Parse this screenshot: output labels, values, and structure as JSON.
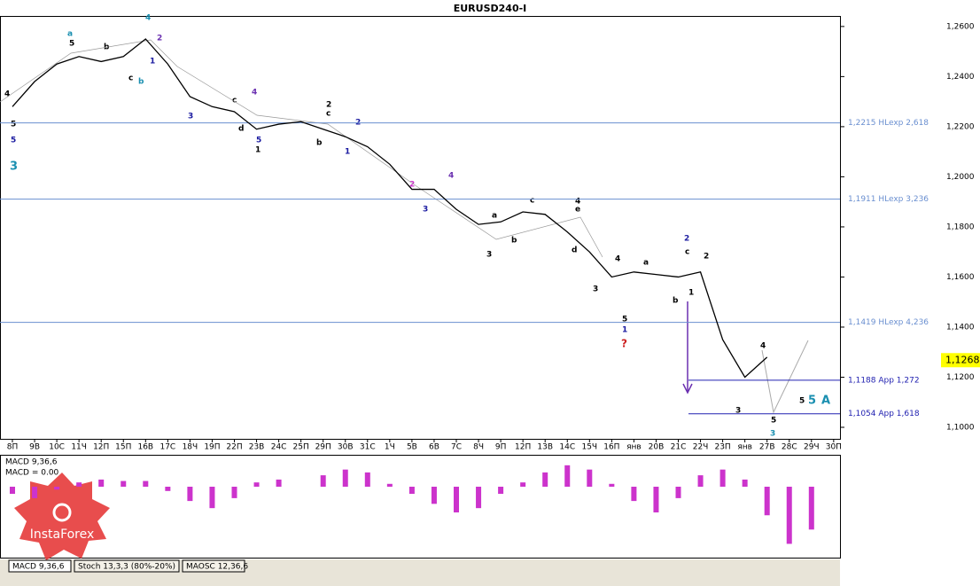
{
  "chart_data": [
    {
      "type": "line",
      "title": "EURUSD240-I",
      "categories": [
        "8П",
        "9В",
        "10С",
        "11Ч",
        "12П",
        "15П",
        "16В",
        "17С",
        "18Ч",
        "19П",
        "22П",
        "23В",
        "24С",
        "25П",
        "29П",
        "30В",
        "31С",
        "1Ч",
        "5В",
        "6В",
        "7С",
        "8Ч",
        "9П",
        "12П",
        "13В",
        "14С",
        "15Ч",
        "16П",
        "янв",
        "20В",
        "21С",
        "22Ч",
        "23П",
        "янв",
        "27В",
        "28С",
        "29Ч",
        "30П"
      ],
      "series": [
        {
          "name": "EURUSD240-I",
          "color": "#000000",
          "values": [
            1.228,
            1.238,
            1.245,
            1.248,
            1.246,
            1.248,
            1.255,
            1.245,
            1.232,
            1.228,
            1.226,
            1.219,
            1.221,
            1.222,
            1.219,
            1.216,
            1.212,
            1.205,
            1.195,
            1.195,
            1.187,
            1.181,
            1.182,
            1.186,
            1.185,
            1.178,
            1.17,
            1.16,
            1.162,
            1.161,
            1.16,
            1.162,
            1.135,
            1.12,
            1.128,
            null,
            null,
            null
          ]
        }
      ],
      "ylim": [
        1.0954,
        1.2642
      ],
      "yticks": [
        {
          "value": 1.26,
          "label": "1,2600"
        },
        {
          "value": 1.24,
          "label": "1,2400"
        },
        {
          "value": 1.22,
          "label": "1,2200"
        },
        {
          "value": 1.2,
          "label": "1,2000"
        },
        {
          "value": 1.18,
          "label": "1,1800"
        },
        {
          "value": 1.16,
          "label": "1,1600"
        },
        {
          "value": 1.14,
          "label": "1,1400"
        },
        {
          "value": 1.12,
          "label": "1,1200"
        },
        {
          "value": 1.1,
          "label": "1,1000"
        }
      ],
      "levels": [
        {
          "value": 1.2215,
          "label": "1,2215 HLexp 2,618",
          "color": "#6a8fd0"
        },
        {
          "value": 1.1911,
          "label": "1,1911 HLexp 3,236",
          "color": "#6a8fd0"
        },
        {
          "value": 1.1419,
          "label": "1,1419 HLexp 4,236",
          "color": "#6a8fd0"
        },
        {
          "value": 1.1188,
          "label": "1,1188 App 1,272",
          "color": "#2020b0"
        },
        {
          "value": 1.1054,
          "label": "1,1054 App 1,618",
          "color": "#2020b0"
        }
      ],
      "last": {
        "value": 1.1268,
        "label": "1,1268"
      },
      "annotations": [
        "5",
        "5",
        "3",
        "4",
        "a",
        "5",
        "b",
        "c",
        "b",
        "4",
        "2",
        "1",
        "3",
        "c",
        "d",
        "4",
        "5",
        "2",
        "2",
        "c",
        "1",
        "b",
        "2",
        "1",
        "3",
        "4",
        "3",
        "a",
        "c",
        "b",
        "4",
        "e",
        "d",
        "3",
        "4",
        "a",
        "5",
        "1",
        "?",
        "2",
        "c",
        "b",
        "2",
        "1",
        "3",
        "4",
        "5",
        "3",
        "5",
        "5",
        "A"
      ]
    },
    {
      "type": "bar",
      "title": "MACD 9,36,6",
      "subtitle": "MACD = 0.00",
      "color": "#cc33cc",
      "values": [
        -5,
        -8,
        -2,
        3,
        5,
        4,
        4,
        -3,
        -10,
        -15,
        -8,
        3,
        5,
        0,
        8,
        12,
        10,
        2,
        -5,
        -12,
        -18,
        -15,
        -5,
        3,
        10,
        15,
        12,
        2,
        -10,
        -18,
        -8,
        8,
        12,
        5,
        -20,
        -40,
        -30,
        null
      ],
      "ylim": [
        -45,
        18
      ],
      "tabs": [
        "MACD 9,36,6",
        "Stoch 13,3,3 (80%-20%)",
        "MAOSC 12,36,6"
      ],
      "logo": "InstaForex"
    }
  ]
}
